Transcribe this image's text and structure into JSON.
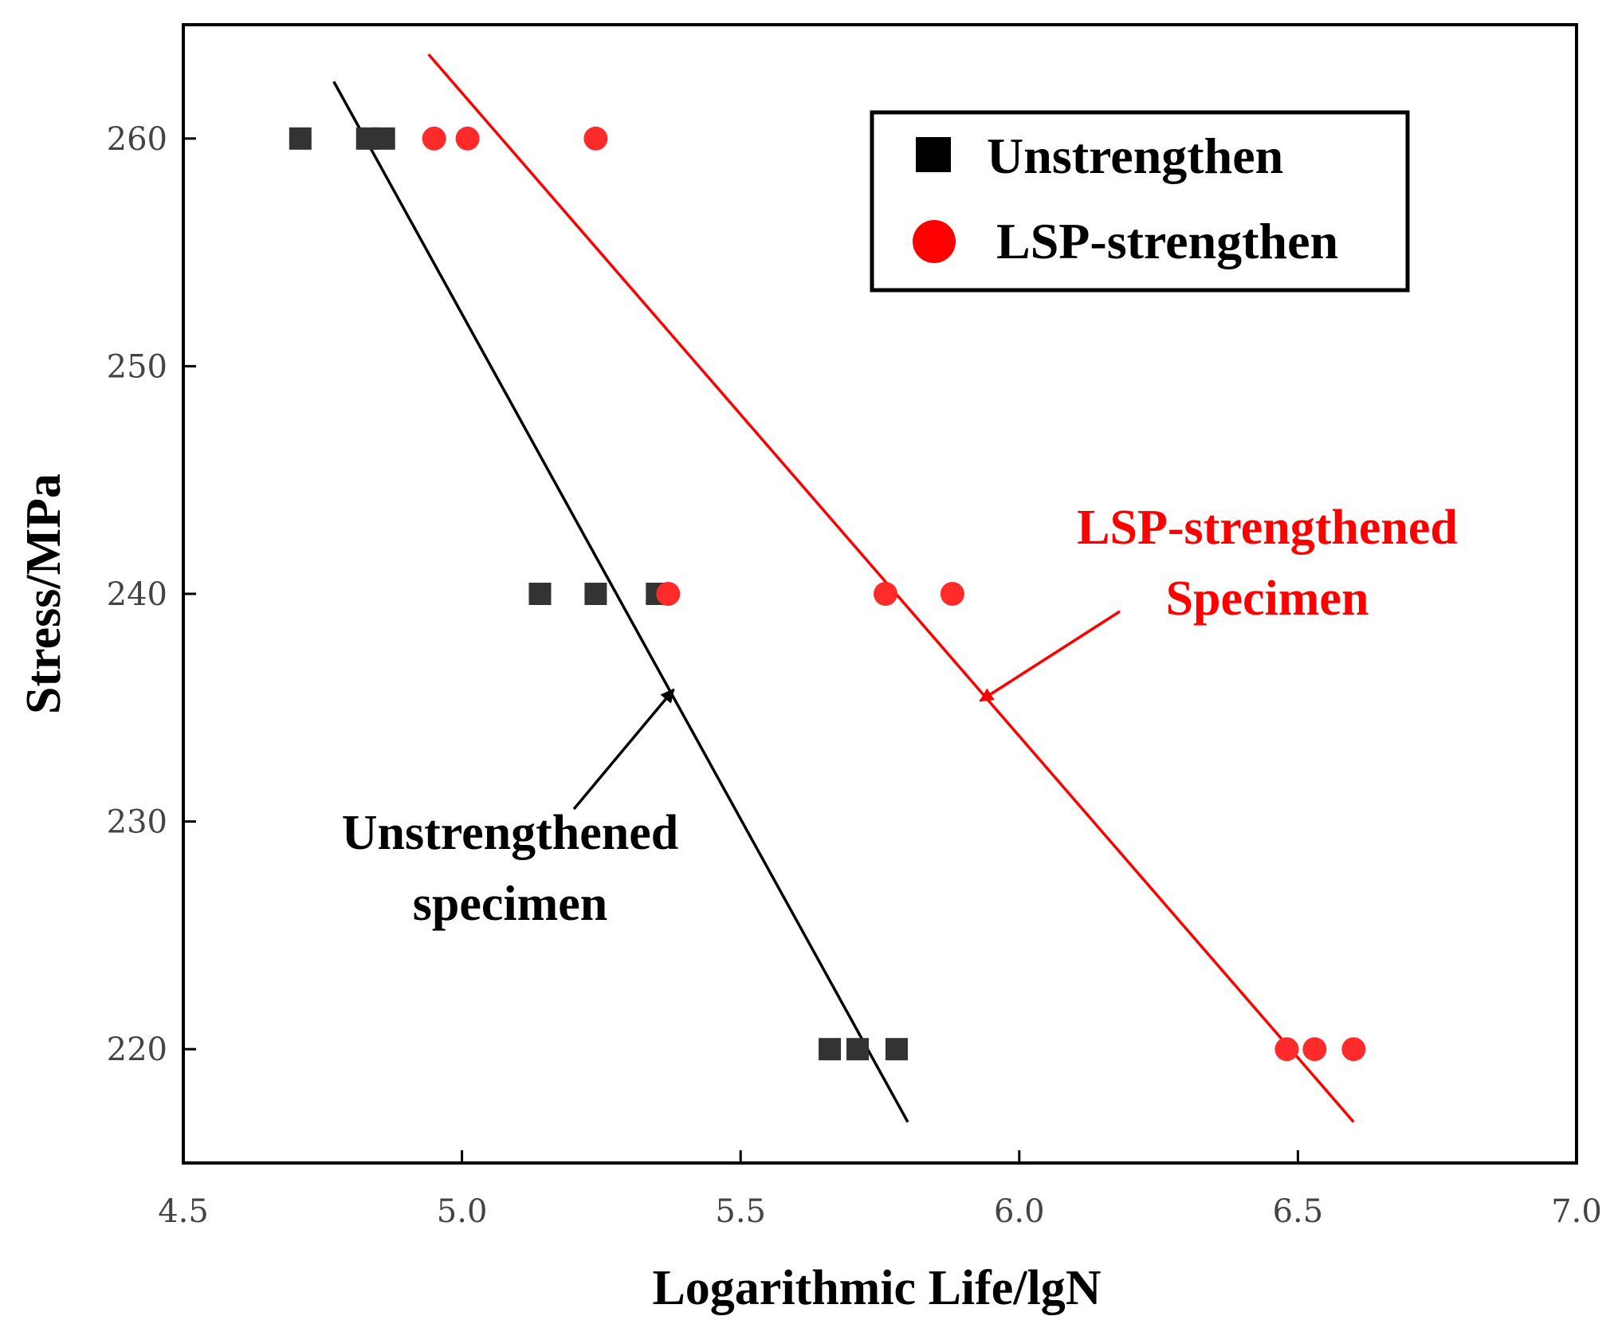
{
  "chart_data": {
    "type": "scatter",
    "xlabel": "Logarithmic Life/lgN",
    "ylabel": "Stress/MPa",
    "xlim": [
      4.5,
      7.0
    ],
    "ylim": [
      215,
      265
    ],
    "x_ticks": [
      4.5,
      5.0,
      5.5,
      6.0,
      6.5,
      7.0
    ],
    "x_tick_labels": [
      "4.5",
      "5.0",
      "5.5",
      "6.0",
      "6.5",
      "7.0"
    ],
    "y_ticks": [
      220,
      230,
      240,
      250,
      260
    ],
    "y_tick_labels": [
      "220",
      "230",
      "240",
      "250",
      "260"
    ],
    "grid": false,
    "legend_position": "top-right",
    "series": [
      {
        "name": "Unstrengthen",
        "marker": "square",
        "color": "#000000",
        "points": [
          {
            "x": 4.71,
            "y": 260
          },
          {
            "x": 4.83,
            "y": 260
          },
          {
            "x": 4.86,
            "y": 260
          },
          {
            "x": 5.14,
            "y": 240
          },
          {
            "x": 5.24,
            "y": 240
          },
          {
            "x": 5.35,
            "y": 240
          },
          {
            "x": 5.66,
            "y": 220
          },
          {
            "x": 5.71,
            "y": 220
          },
          {
            "x": 5.78,
            "y": 220
          }
        ],
        "fit_line": [
          {
            "x": 4.77,
            "y": 262.5
          },
          {
            "x": 5.8,
            "y": 216.8
          }
        ]
      },
      {
        "name": "LSP-strengthen",
        "marker": "circle",
        "color": "#ff0000",
        "points": [
          {
            "x": 4.95,
            "y": 260
          },
          {
            "x": 5.01,
            "y": 260
          },
          {
            "x": 5.24,
            "y": 260
          },
          {
            "x": 5.37,
            "y": 240
          },
          {
            "x": 5.76,
            "y": 240
          },
          {
            "x": 5.88,
            "y": 240
          },
          {
            "x": 6.48,
            "y": 220
          },
          {
            "x": 6.53,
            "y": 220
          },
          {
            "x": 6.6,
            "y": 220
          }
        ],
        "fit_line": [
          {
            "x": 4.94,
            "y": 263.7
          },
          {
            "x": 6.6,
            "y": 216.8
          }
        ]
      }
    ],
    "annotations": [
      {
        "lines": [
          "Unstrengthened",
          "specimen"
        ],
        "color": "#000000",
        "arrow_to": {
          "x": 5.38,
          "y": 235.8
        }
      },
      {
        "lines": [
          "LSP-strengthened",
          "Specimen"
        ],
        "color": "#ff0000",
        "arrow_to": {
          "x": 5.93,
          "y": 235.3
        }
      }
    ]
  }
}
